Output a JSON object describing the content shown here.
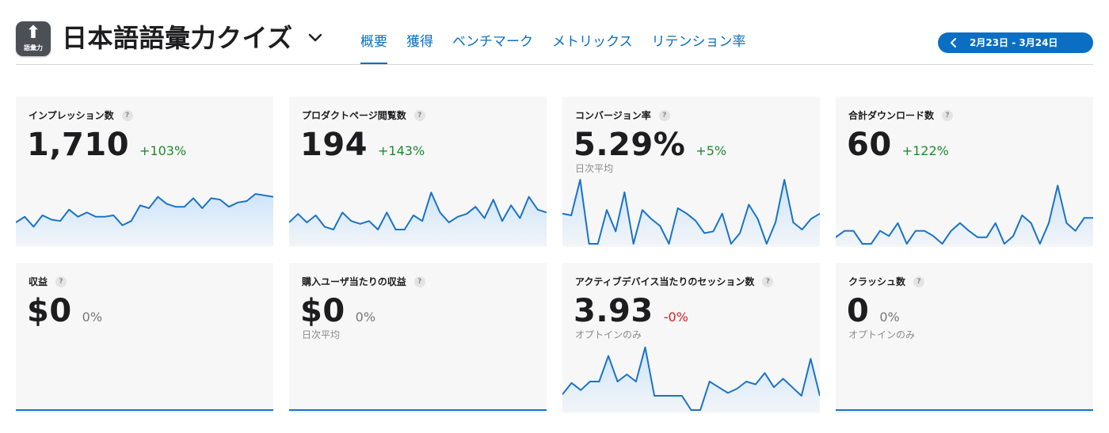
{
  "app": {
    "icon_symbol": "⬆",
    "icon_label": "語彙力",
    "title": "日本語語彙力クイズ"
  },
  "tabs": [
    {
      "label": "概要",
      "active": true
    },
    {
      "label": "獲得",
      "active": false
    },
    {
      "label": "ベンチマーク",
      "active": false
    },
    {
      "label": "メトリックス",
      "active": false
    },
    {
      "label": "リテンション率",
      "active": false
    }
  ],
  "date_range": "2月23日 - 3月24日",
  "colors": {
    "accent": "#0a6fc2",
    "positive": "#1f8a2e",
    "negative": "#d61f1f",
    "line": "#1a73c8",
    "area": "#cfe5fb"
  },
  "cards": [
    {
      "title": "インプレッション数",
      "help": "?",
      "value": "1,710",
      "delta": "+103%",
      "delta_type": "pos",
      "sub": "",
      "series": [
        1.5,
        1.9,
        1.2,
        2.0,
        1.7,
        1.6,
        2.4,
        1.9,
        2.2,
        1.9,
        1.9,
        2.0,
        1.3,
        1.6,
        2.7,
        2.5,
        3.3,
        2.8,
        2.6,
        2.6,
        3.2,
        2.5,
        3.2,
        3.1,
        2.6,
        2.9,
        3.0,
        3.5,
        3.4,
        3.3
      ],
      "min": 0,
      "max": 5
    },
    {
      "title": "プロダクトページ閲覧数",
      "help": "?",
      "value": "194",
      "delta": "+143%",
      "delta_type": "pos",
      "sub": "",
      "series": [
        1.5,
        2.1,
        1.5,
        2.0,
        1.2,
        1.0,
        2.2,
        1.6,
        1.4,
        1.6,
        1.0,
        2.2,
        1.0,
        1.0,
        2.0,
        1.6,
        3.6,
        2.2,
        1.5,
        1.9,
        2.1,
        2.6,
        1.8,
        3.1,
        1.6,
        2.7,
        1.8,
        3.3,
        2.4,
        2.2
      ],
      "min": 0,
      "max": 5
    },
    {
      "title": "コンバージョン率",
      "help": "?",
      "value": "5.29%",
      "delta": "+5%",
      "delta_type": "pos",
      "sub": "日次平均",
      "series": [
        1.7,
        1.6,
        3.6,
        0.0,
        0.0,
        1.9,
        0.7,
        2.9,
        0.0,
        1.9,
        1.4,
        1.0,
        0.0,
        2.0,
        1.7,
        1.3,
        0.6,
        0.7,
        1.7,
        0.0,
        0.6,
        2.2,
        1.4,
        0.0,
        1.2,
        3.6,
        1.2,
        0.8,
        1.4,
        1.7
      ],
      "min": 0,
      "max": 4
    },
    {
      "title": "合計ダウンロード数",
      "help": "?",
      "value": "60",
      "delta": "+122%",
      "delta_type": "pos",
      "sub": "",
      "series": [
        0.5,
        1.0,
        1.0,
        0.0,
        0.0,
        1.0,
        0.6,
        1.6,
        0.0,
        1.0,
        1.0,
        0.6,
        0.0,
        1.0,
        1.6,
        1.0,
        0.5,
        0.5,
        1.6,
        0.0,
        0.6,
        2.2,
        1.6,
        0.0,
        1.6,
        4.5,
        1.6,
        1.0,
        2.0,
        2.0
      ],
      "min": 0,
      "max": 5.5
    },
    {
      "title": "収益",
      "help": "?",
      "value": "$0",
      "delta": "0%",
      "delta_type": "zero",
      "sub": "",
      "series": [
        0,
        0,
        0,
        0,
        0,
        0,
        0,
        0,
        0,
        0,
        0,
        0,
        0,
        0,
        0,
        0,
        0,
        0,
        0,
        0,
        0,
        0,
        0,
        0,
        0,
        0,
        0,
        0,
        0,
        0
      ],
      "min": 0,
      "max": 5
    },
    {
      "title": "購入ユーザ当たりの収益",
      "help": "?",
      "value": "$0",
      "delta": "0%",
      "delta_type": "zero",
      "sub": "日次平均",
      "series": [
        0,
        0,
        0,
        0,
        0,
        0,
        0,
        0,
        0,
        0,
        0,
        0,
        0,
        0,
        0,
        0,
        0,
        0,
        0,
        0,
        0,
        0,
        0,
        0,
        0,
        0,
        0,
        0,
        0,
        0
      ],
      "min": 0,
      "max": 5
    },
    {
      "title": "アクティブデバイス当たりのセッション数",
      "help": "?",
      "value": "3.93",
      "delta": "-0%",
      "delta_type": "neg",
      "sub": "オプトインのみ",
      "series": [
        1.1,
        1.9,
        1.4,
        2.0,
        2.0,
        3.8,
        2.0,
        2.5,
        2.0,
        4.4,
        1.0,
        1.0,
        1.0,
        1.0,
        0.0,
        0.0,
        2.0,
        1.6,
        1.2,
        1.5,
        2.0,
        1.8,
        2.6,
        1.6,
        2.2,
        1.6,
        1.0,
        3.6,
        1.0
      ],
      "min": 0,
      "max": 5
    },
    {
      "title": "クラッシュ数",
      "help": "?",
      "value": "0",
      "delta": "0%",
      "delta_type": "zero",
      "sub": "オプトインのみ",
      "series": [
        0,
        0,
        0,
        0,
        0,
        0,
        0,
        0,
        0,
        0,
        0,
        0,
        0,
        0,
        0,
        0,
        0,
        0,
        0,
        0,
        0,
        0,
        0,
        0,
        0,
        0,
        0,
        0,
        0,
        0
      ],
      "min": 0,
      "max": 5
    }
  ]
}
